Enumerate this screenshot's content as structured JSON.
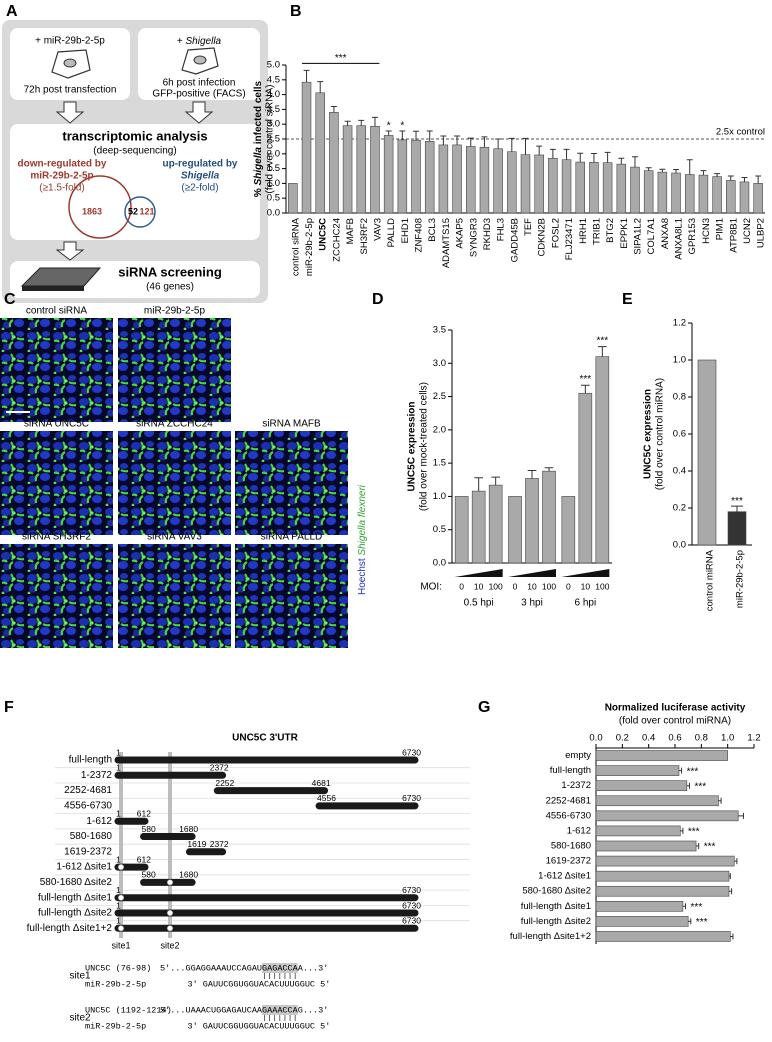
{
  "panel_a": {
    "label": "A",
    "transfection": {
      "title": "+ miR-29b-2-5p",
      "note": "72h post transfection"
    },
    "infection": {
      "plus": "+",
      "agent": "Shigella",
      "note1": "6h post infection",
      "note2": "GFP-positive (FACS)"
    },
    "transcriptomics": {
      "title": "transcriptomic analysis",
      "subtitle": "(deep-sequencing)",
      "down": {
        "line1": "down-regulated by",
        "line2": "miR-29b-2-5p",
        "line3": "(≥1.5-fold)"
      },
      "up": {
        "line1": "up-regulated by",
        "line2": "Shigella",
        "line3": "(≥2-fold)"
      },
      "venn": {
        "left_only": 1863,
        "overlap": 52,
        "right_only": 121
      }
    },
    "screening": {
      "title": "siRNA screening",
      "subtitle": "(46 genes)"
    }
  },
  "panel_c": {
    "label": "C",
    "images": [
      "control siRNA",
      "miR-29b-2-5p",
      "siRNA UNC5C",
      "siRNA ZCCHC24",
      "siRNA MAFB",
      "siRNA SH3RF2",
      "siRNA VAV3",
      "siRNA PALLD"
    ],
    "stain_labels": {
      "nuclei": "Hoechst",
      "bacteria": "Shigella flexneri"
    }
  },
  "panel_f": {
    "label": "F",
    "title": "UNC5C 3'UTR",
    "sites": [
      "site1",
      "site2"
    ],
    "constructs": [
      {
        "name": "full-length",
        "start": 1,
        "end": 6730,
        "deleted_sites": []
      },
      {
        "name": "1-2372",
        "start": 1,
        "end": 2372,
        "deleted_sites": []
      },
      {
        "name": "2252-4681",
        "start": 2252,
        "end": 4681,
        "deleted_sites": []
      },
      {
        "name": "4556-6730",
        "start": 4556,
        "end": 6730,
        "deleted_sites": []
      },
      {
        "name": "1-612",
        "start": 1,
        "end": 612,
        "deleted_sites": []
      },
      {
        "name": "580-1680",
        "start": 580,
        "end": 1680,
        "deleted_sites": []
      },
      {
        "name": "1619-2372",
        "start": 1619,
        "end": 2372,
        "deleted_sites": []
      },
      {
        "name": "1-612 Δsite1",
        "start": 1,
        "end": 612,
        "deleted_sites": [
          0
        ]
      },
      {
        "name": "580-1680 Δsite2",
        "start": 580,
        "end": 1680,
        "deleted_sites": [
          1
        ]
      },
      {
        "name": "full-length Δsite1",
        "start": 1,
        "end": 6730,
        "deleted_sites": [
          0
        ]
      },
      {
        "name": "full-length Δsite2",
        "start": 1,
        "end": 6730,
        "deleted_sites": [
          1
        ]
      },
      {
        "name": "full-length Δsite1+2",
        "start": 1,
        "end": 6730,
        "deleted_sites": [
          0,
          1
        ]
      }
    ],
    "alignments": [
      {
        "site": "site1",
        "target_label": "UNC5C (76-98)",
        "target_seq": "5'...GGAGGAAAUCCAGAUGAGACCAA...3'",
        "mirna_label": "miR-29b-2-5p",
        "mirna_seq": "3' GAUUCGGUGGUACACUUUGGUC 5'"
      },
      {
        "site": "site2",
        "target_label": "UNC5C (1192-1214)",
        "target_seq": "5'...UAAACUGGAGAUCAAGAAACCAG...3'",
        "mirna_label": "miR-29b-2-5p",
        "mirna_seq": "3' GAUUCGGUGGUACACUUUGGUC 5'"
      }
    ]
  },
  "chart_data": [
    {
      "type": "bar",
      "panel": "B",
      "y_label": {
        "prefix": "%",
        "italic": "Shigella",
        "suffix": "infected cells"
      },
      "y_sublabel": "(fold over control siRNA)",
      "categories": [
        "control siRNA",
        "miR-29b-2-5p",
        "UNC5C",
        "ZCCHC24",
        "MAFB",
        "SH3RF2",
        "VAV3",
        "PALLD",
        "EHD1",
        "ZNF408",
        "BCL3",
        "ADAMTS15",
        "AKAP5",
        "SYNGR3",
        "RKHD3",
        "FHL3",
        "GADD45B",
        "TEF",
        "CDKN2B",
        "FOSL2",
        "FLJ23471",
        "HRH1",
        "TRIB1",
        "BTG2",
        "EPPK1",
        "SIPA1L2",
        "COL7A1",
        "ANXA8",
        "ANXA8L1",
        "GPR153",
        "HCN3",
        "PIM1",
        "ATP8B1",
        "UCN2",
        "ULBP2"
      ],
      "highlight_index": 2,
      "values": [
        1.0,
        4.42,
        4.06,
        3.4,
        2.95,
        2.95,
        2.93,
        2.62,
        2.47,
        2.46,
        2.42,
        2.3,
        2.3,
        2.25,
        2.22,
        2.17,
        2.07,
        1.97,
        1.96,
        1.85,
        1.8,
        1.72,
        1.71,
        1.7,
        1.65,
        1.55,
        1.43,
        1.38,
        1.35,
        1.3,
        1.28,
        1.23,
        1.1,
        1.05,
        1.0
      ],
      "errors": [
        null,
        0.4,
        0.38,
        0.2,
        0.15,
        0.18,
        0.3,
        0.15,
        0.3,
        0.3,
        0.35,
        0.3,
        0.3,
        0.28,
        0.35,
        0.33,
        0.45,
        0.55,
        0.3,
        0.3,
        0.35,
        0.3,
        0.3,
        0.35,
        0.2,
        0.35,
        0.1,
        0.1,
        0.12,
        0.5,
        0.15,
        0.1,
        0.15,
        0.15,
        0.25
      ],
      "significance": [
        null,
        null,
        null,
        null,
        null,
        null,
        null,
        "*",
        "*",
        null,
        null,
        null,
        null,
        null,
        null,
        null,
        null,
        null,
        null,
        null,
        null,
        null,
        null,
        null,
        null,
        null,
        null,
        null,
        null,
        null,
        null,
        null,
        null,
        null,
        null
      ],
      "bracket": {
        "text": "***",
        "from": 1,
        "to": 6
      },
      "reference": {
        "value": 2.5,
        "label": "2.5x control"
      },
      "color": "#a9a9a9",
      "ylim": [
        0,
        5
      ],
      "yticks": [
        {
          "value": 0,
          "label": "0.0"
        },
        0.5,
        {
          "value": 1,
          "label": "1.0"
        },
        1.5,
        {
          "value": 2,
          "label": "2.0"
        },
        2.5,
        {
          "value": 3,
          "label": "3.0"
        },
        3.5,
        {
          "value": 4,
          "label": "4.0"
        },
        4.5,
        {
          "value": 5,
          "label": "5.0"
        }
      ]
    },
    {
      "type": "grouped_bar",
      "panel": "D",
      "y_label": "UNC5C expression",
      "y_sublabel": "(fold over mock-treated cells)",
      "x_prefix": "MOI:",
      "groups": [
        "0.5 hpi",
        "3 hpi",
        "6 hpi"
      ],
      "series": [
        {
          "name": "0",
          "values": [
            1.0,
            1.0,
            1.0
          ],
          "errors": [
            null,
            null,
            null
          ],
          "significance": [
            null,
            null,
            null
          ]
        },
        {
          "name": "10",
          "values": [
            1.08,
            1.27,
            2.55
          ],
          "errors": [
            0.2,
            0.12,
            0.12
          ],
          "significance": [
            null,
            null,
            "***"
          ]
        },
        {
          "name": "100",
          "values": [
            1.17,
            1.38,
            3.1
          ],
          "errors": [
            0.12,
            0.05,
            0.15
          ],
          "significance": [
            null,
            null,
            "***"
          ]
        }
      ],
      "color": "#a9a9a9",
      "ylim": [
        0,
        3.5
      ],
      "yticks": [
        {
          "value": 0,
          "label": "0.0"
        },
        0.5,
        {
          "value": 1,
          "label": "1.0"
        },
        1.5,
        {
          "value": 2,
          "label": "2.0"
        },
        2.5,
        {
          "value": 3,
          "label": "3.0"
        },
        3.5
      ]
    },
    {
      "type": "bar",
      "panel": "E",
      "y_label": "UNC5C expression",
      "y_sublabel": "(fold over control miRNA)",
      "categories": [
        "control miRNA",
        "miR-29b-2-5p"
      ],
      "values": [
        1.0,
        0.18
      ],
      "errors": [
        null,
        0.03
      ],
      "significance": [
        null,
        "***"
      ],
      "colors": [
        "#a9a9a9",
        "#333333"
      ],
      "ylim": [
        0,
        1.2
      ],
      "yticks": [
        {
          "value": 0,
          "label": "0.0"
        },
        0.2,
        0.4,
        0.6,
        0.8,
        {
          "value": 1,
          "label": "1.0"
        },
        1.2
      ]
    },
    {
      "type": "hbar",
      "panel": "G",
      "title": "Normalized luciferase activity",
      "subtitle": "(fold over control miRNA)",
      "categories": [
        "empty",
        "full-length",
        "1-2372",
        "2252-4681",
        "4556-6730",
        "1-612",
        "580-1680",
        "1619-2372",
        "1-612 Δsite1",
        "580-1680 Δsite2",
        "full-length Δsite1",
        "full-length Δsite2",
        "full-length Δsite1+2"
      ],
      "values": [
        1.0,
        0.63,
        0.69,
        0.93,
        1.08,
        0.64,
        0.76,
        1.05,
        1.01,
        1.01,
        0.66,
        0.7,
        1.02
      ],
      "errors": [
        null,
        0.02,
        0.02,
        0.02,
        0.04,
        0.02,
        0.02,
        0.02,
        0.01,
        0.02,
        0.02,
        0.02,
        0.02
      ],
      "significance": [
        null,
        "***",
        "***",
        null,
        null,
        "***",
        "***",
        null,
        null,
        null,
        "***",
        "***",
        null
      ],
      "color": "#a9a9a9",
      "xlim": [
        0,
        1.2
      ],
      "xticks": [
        {
          "value": 0,
          "label": "0.0"
        },
        0.2,
        0.4,
        0.6,
        0.8,
        {
          "value": 1,
          "label": "1.0"
        },
        1.2
      ]
    }
  ]
}
